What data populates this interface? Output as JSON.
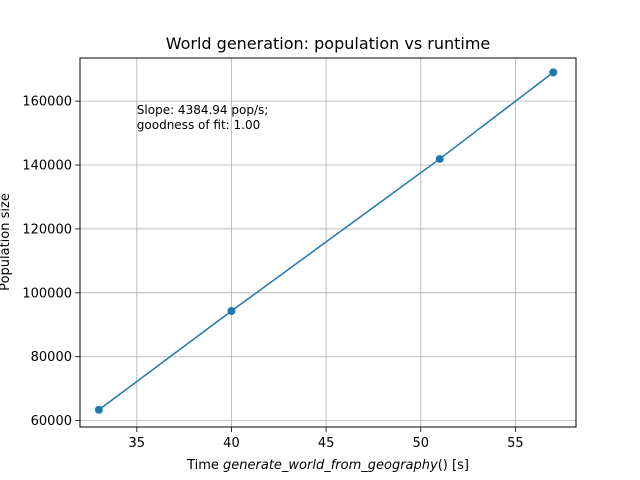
{
  "chart_data": {
    "type": "line",
    "title": "World generation: population vs runtime",
    "xlabel_prefix": "Time ",
    "xlabel_func": "generate_world_from_geography",
    "xlabel_suffix": "() [s]",
    "ylabel": "Population size",
    "xlim": [
      32,
      58.2
    ],
    "ylim": [
      58000,
      173500
    ],
    "xticks": [
      35,
      40,
      45,
      50,
      55
    ],
    "yticks": [
      60000,
      80000,
      100000,
      120000,
      140000,
      160000
    ],
    "grid": true,
    "series": [
      {
        "x": [
          33,
          40,
          51,
          57
        ],
        "y": [
          63400,
          94300,
          141900,
          169000
        ],
        "color": "#1f77b4",
        "marker": "circle"
      }
    ],
    "annotation": {
      "lines": [
        "Slope: 4384.94 pop/s;",
        "goodness of fit: 1.00"
      ],
      "x": 35,
      "y": 156000
    }
  }
}
